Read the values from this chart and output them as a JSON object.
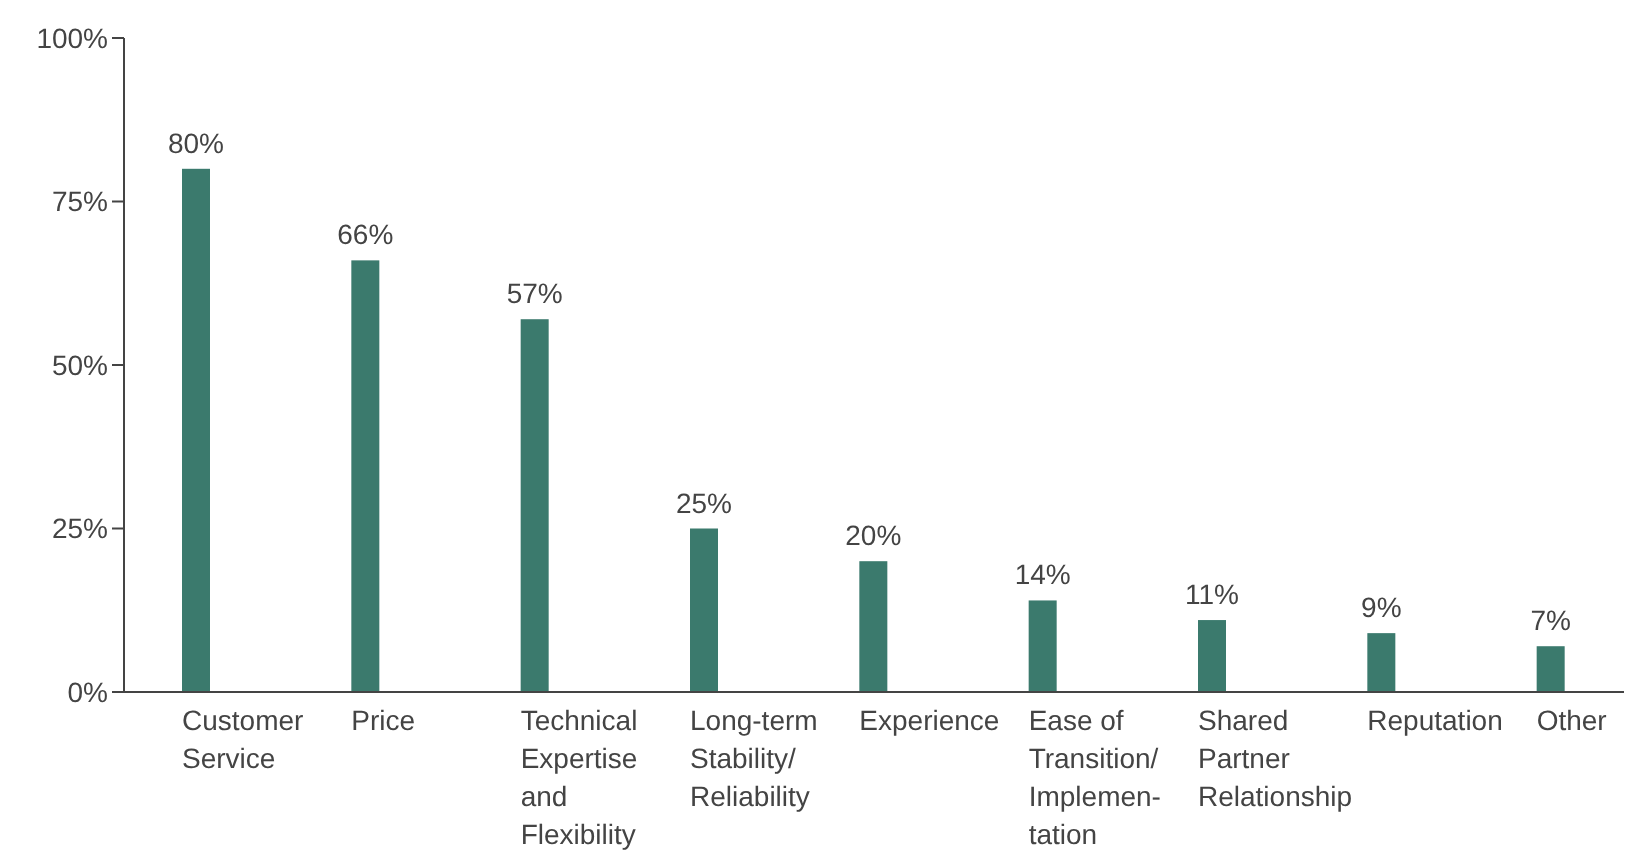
{
  "chart_data": {
    "type": "bar",
    "categories": [
      "Customer Service",
      "Price",
      "Technical Expertise and Flexibility",
      "Long-term Stability/ Reliability",
      "Experience",
      "Ease of Transition/ Implemen-tation",
      "Shared Partner Relationship",
      "Reputation",
      "Other"
    ],
    "values": [
      80,
      66,
      57,
      25,
      20,
      14,
      11,
      9,
      7
    ],
    "value_labels": [
      "80%",
      "66%",
      "57%",
      "25%",
      "20%",
      "14%",
      "11%",
      "9%",
      "7%"
    ],
    "color": "#3b7a6d",
    "ylim": [
      0,
      100
    ],
    "yticks": [
      {
        "value": 0,
        "label": "0%"
      },
      {
        "value": 25,
        "label": "25%"
      },
      {
        "value": 50,
        "label": "50%"
      },
      {
        "value": 75,
        "label": "75%"
      },
      {
        "value": 100,
        "label": "100%"
      }
    ],
    "grid": false
  }
}
